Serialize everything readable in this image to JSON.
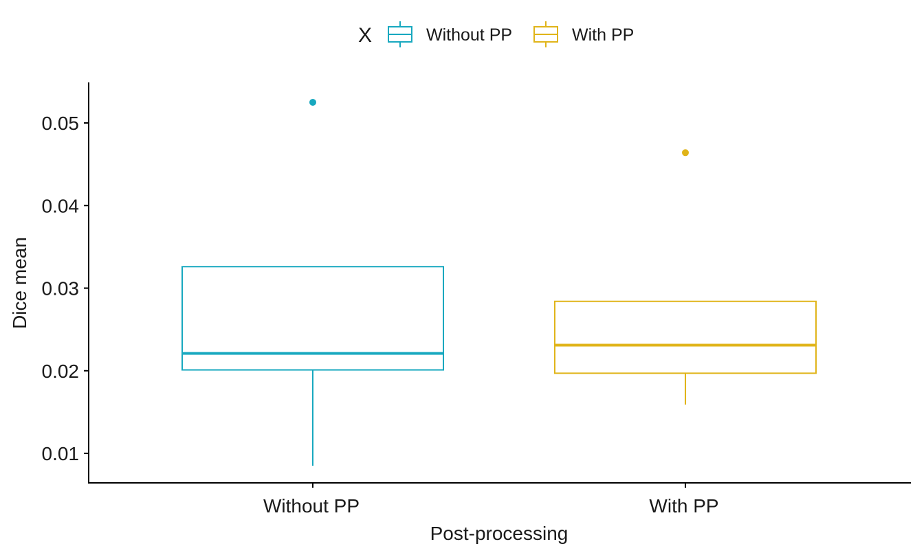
{
  "chart_data": {
    "type": "box",
    "title": "",
    "xlabel": "Post-processing",
    "ylabel": "Dice mean",
    "categories": [
      "Without PP",
      "With PP"
    ],
    "ylim": [
      0.0065,
      0.055
    ],
    "yticks": [
      0.01,
      0.02,
      0.03,
      0.04,
      0.05
    ],
    "ytick_labels": [
      "0.01",
      "0.02",
      "0.03",
      "0.04",
      "0.05"
    ],
    "grid": false,
    "legend": {
      "title": "X",
      "position": "top",
      "entries": [
        "Without PP",
        "With PP"
      ]
    },
    "series": [
      {
        "category": "Without PP",
        "color": "#17a8bf",
        "whisker_low": 0.0085,
        "q1": 0.0201,
        "median": 0.0221,
        "q3": 0.0326,
        "whisker_high": 0.0326,
        "outliers": [
          0.0525
        ]
      },
      {
        "category": "With PP",
        "color": "#e0b419",
        "whisker_low": 0.0159,
        "q1": 0.0197,
        "median": 0.0231,
        "q3": 0.0284,
        "whisker_high": 0.0284,
        "outliers": [
          0.0464
        ]
      }
    ]
  }
}
